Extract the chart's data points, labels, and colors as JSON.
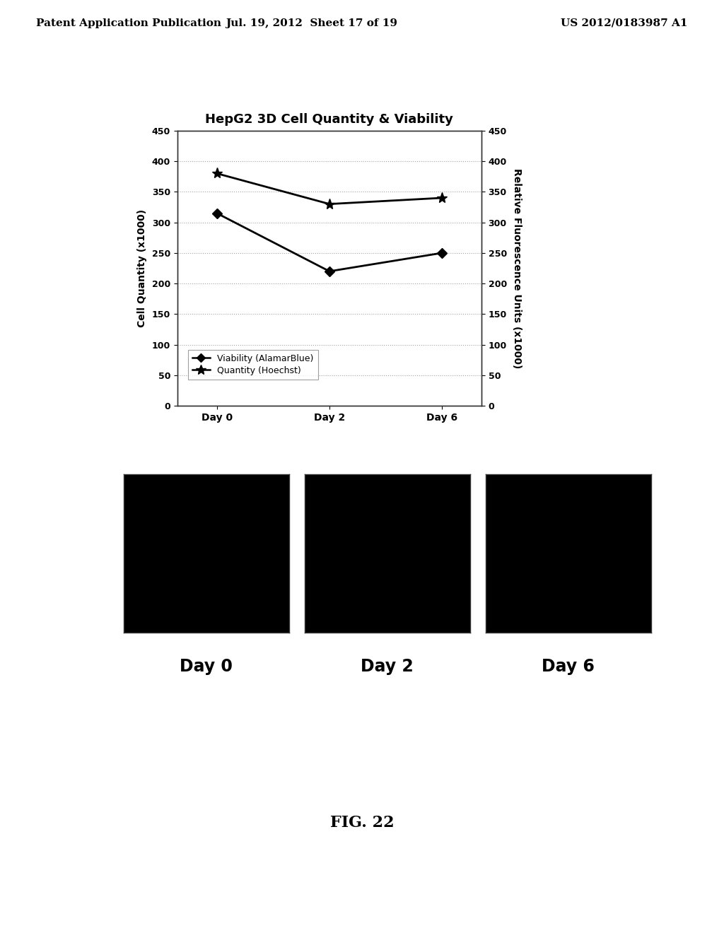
{
  "title": "HepG2 3D Cell Quantity & Viability",
  "header_left": "Patent Application Publication",
  "header_mid": "Jul. 19, 2012  Sheet 17 of 19",
  "header_right": "US 2012/0183987 A1",
  "x_labels": [
    "Day 0",
    "Day 2",
    "Day 6"
  ],
  "viability_values": [
    315,
    220,
    250
  ],
  "quantity_values": [
    380,
    330,
    340
  ],
  "ylabel_left": "Cell Quantity (x1000)",
  "ylabel_right": "Relative Fluorescence Units (x1000)",
  "ylim": [
    0,
    450
  ],
  "yticks": [
    0,
    50,
    100,
    150,
    200,
    250,
    300,
    350,
    400,
    450
  ],
  "legend_viability": "Viability (AlamarBlue)",
  "legend_quantity": "Quantity (Hoechst)",
  "fig_caption": "FIG. 22",
  "image_labels": [
    "Day 0",
    "Day 2",
    "Day 6"
  ],
  "bg_color": "#ffffff",
  "plot_bg_color": "#ffffff",
  "line_color": "#000000"
}
